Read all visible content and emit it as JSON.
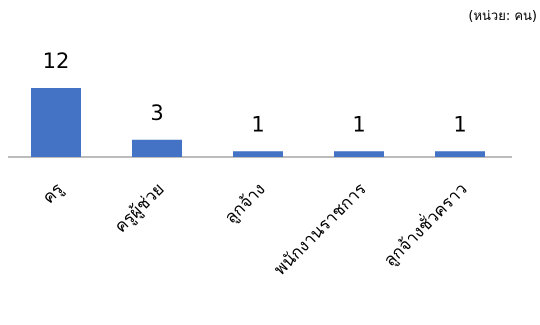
{
  "chart_data": {
    "type": "bar",
    "unit_note": "(หน่วย: คน)",
    "categories": [
      "ครู",
      "ครูผู้ช่วย",
      "ลูกจ้าง",
      "พนักงานราชการ",
      "ลูกจ้างชั่วคราว"
    ],
    "values": [
      12,
      3,
      1,
      1,
      1
    ],
    "value_labels": [
      "12",
      "3",
      "1",
      "1",
      "1"
    ],
    "title": "",
    "xlabel": "",
    "ylabel": "",
    "ylim": [
      0,
      12
    ],
    "grid": false,
    "legend": "none",
    "colors": {
      "bar": "#4472C4",
      "axis": "#a6a6a6",
      "text": "#000000"
    }
  }
}
